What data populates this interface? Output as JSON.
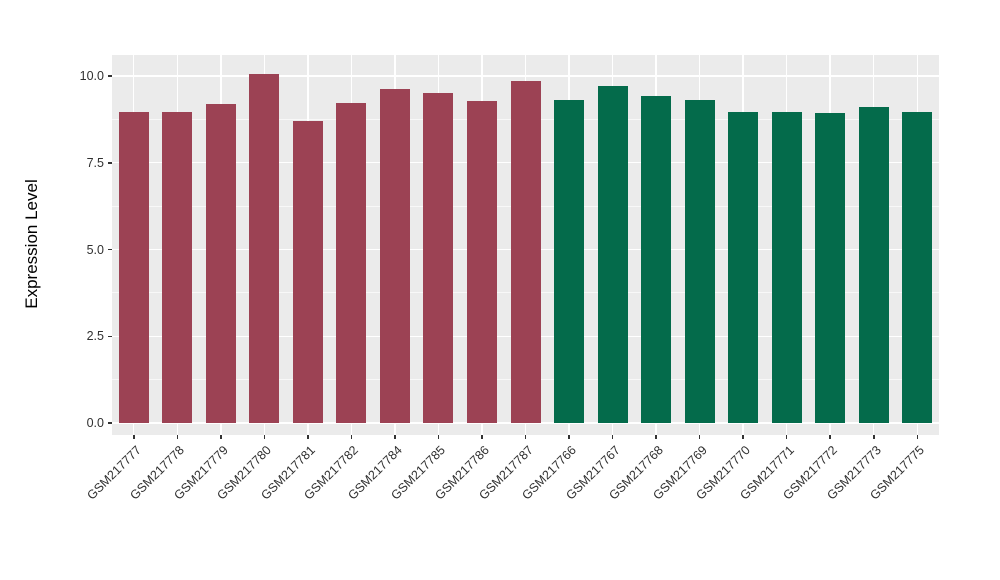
{
  "chart_data": {
    "type": "bar",
    "title": "",
    "xlabel": "",
    "ylabel": "Expression Level",
    "categories": [
      "GSM217777",
      "GSM217778",
      "GSM217779",
      "GSM217780",
      "GSM217781",
      "GSM217782",
      "GSM217784",
      "GSM217785",
      "GSM217786",
      "GSM217787",
      "GSM217766",
      "GSM217767",
      "GSM217768",
      "GSM217769",
      "GSM217770",
      "GSM217771",
      "GSM217772",
      "GSM217773",
      "GSM217775"
    ],
    "values": [
      8.96,
      8.96,
      9.2,
      10.07,
      8.7,
      9.23,
      9.63,
      9.52,
      9.27,
      9.87,
      9.32,
      9.7,
      9.42,
      9.32,
      8.96,
      8.96,
      8.93,
      9.12,
      8.97
    ],
    "groups": [
      "group1",
      "group1",
      "group1",
      "group1",
      "group1",
      "group1",
      "group1",
      "group1",
      "group1",
      "group1",
      "group2",
      "group2",
      "group2",
      "group2",
      "group2",
      "group2",
      "group2",
      "group2",
      "group2"
    ],
    "group_colors": {
      "group1": "#9C4254",
      "group2": "#046B4B"
    },
    "ylim": [
      0,
      10.6
    ],
    "ytick_values": [
      0,
      2.5,
      5,
      7.5,
      10
    ],
    "ytick_labels": [
      "0.0",
      "2.5",
      "5.0",
      "7.5",
      "10.0"
    ],
    "minor_ytick_values": [
      1.25,
      3.75,
      6.25,
      8.75
    ],
    "grid": "major-and-minor",
    "legend_position": "none",
    "panel_bg": "#EBEBEB",
    "grid_color": "#FFFFFF",
    "tick_color": "#333333",
    "text_color": "#303030"
  }
}
